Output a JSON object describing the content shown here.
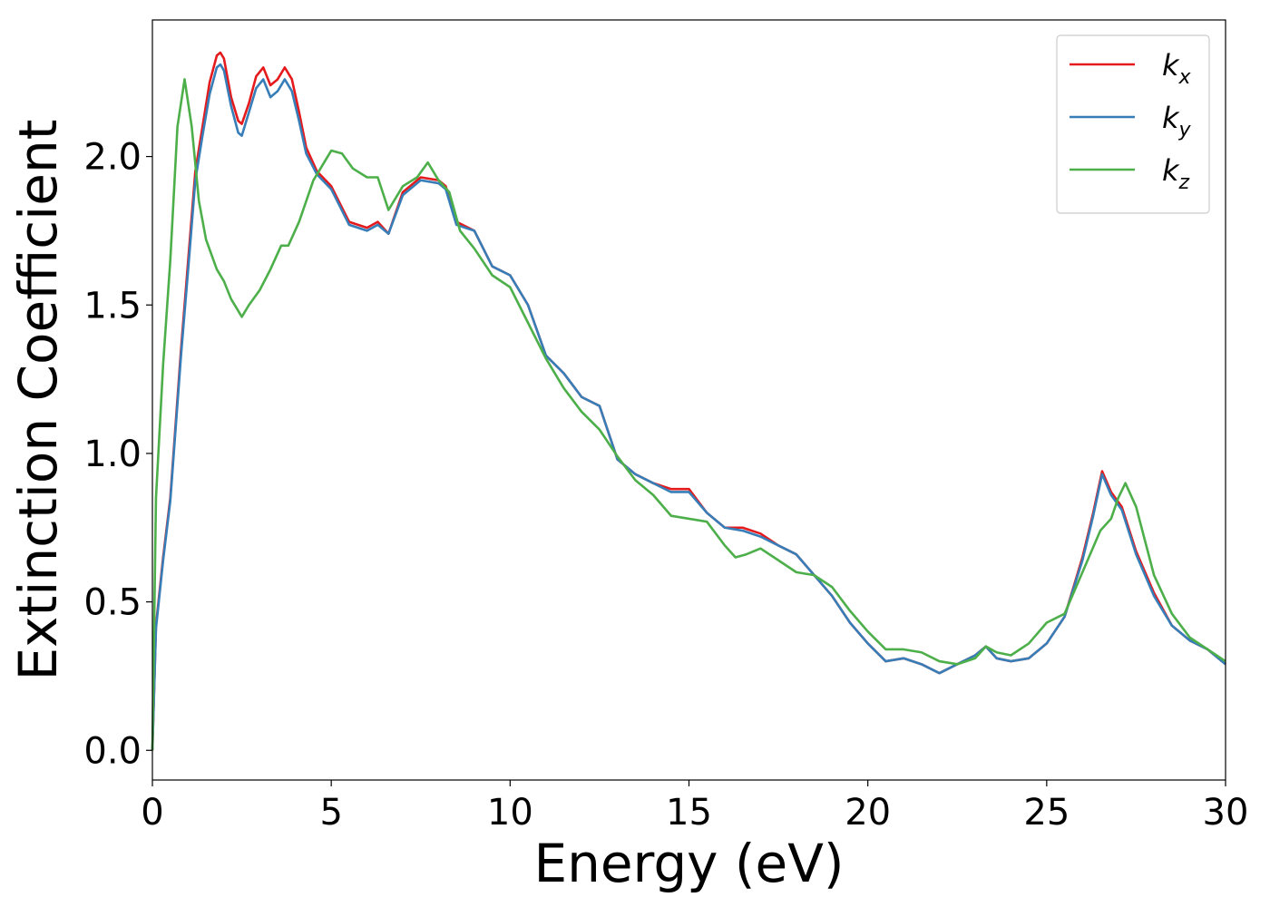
{
  "chart_data": {
    "type": "line",
    "xlabel": "Energy (eV)",
    "ylabel": "Extinction Coefficient",
    "xlim": [
      0,
      30
    ],
    "ylim": [
      -0.1,
      2.46
    ],
    "xticks": [
      0,
      5,
      10,
      15,
      20,
      25,
      30
    ],
    "yticks": [
      0.0,
      0.5,
      1.0,
      1.5,
      2.0
    ],
    "xtick_labels": [
      "0",
      "5",
      "10",
      "15",
      "20",
      "25",
      "30"
    ],
    "ytick_labels": [
      "0.0",
      "0.5",
      "1.0",
      "1.5",
      "2.0"
    ],
    "grid": false,
    "legend_position": "top-right",
    "series": [
      {
        "name": "k",
        "subscript": "x",
        "color": "#e41a1c",
        "x": [
          0,
          0.1,
          0.3,
          0.5,
          0.8,
          1.0,
          1.2,
          1.4,
          1.6,
          1.8,
          1.9,
          2.0,
          2.2,
          2.4,
          2.5,
          2.7,
          2.9,
          3.1,
          3.3,
          3.5,
          3.7,
          3.9,
          4.1,
          4.3,
          4.6,
          5.0,
          5.5,
          6.0,
          6.3,
          6.6,
          7.0,
          7.5,
          8.0,
          8.2,
          8.5,
          9.0,
          9.5,
          10.0,
          10.5,
          11.0,
          11.5,
          12.0,
          12.5,
          13.0,
          13.5,
          14.0,
          14.5,
          15.0,
          15.5,
          16.0,
          16.5,
          17.0,
          17.5,
          18.0,
          18.5,
          19.0,
          19.5,
          20.0,
          20.5,
          21.0,
          21.5,
          22.0,
          22.5,
          23.0,
          23.3,
          23.6,
          24.0,
          24.5,
          25.0,
          25.5,
          26.0,
          26.3,
          26.55,
          26.8,
          27.1,
          27.5,
          28.0,
          28.5,
          29.0,
          29.5,
          30.0
        ],
        "values": [
          0.0,
          0.42,
          0.65,
          0.85,
          1.35,
          1.65,
          1.95,
          2.1,
          2.25,
          2.34,
          2.35,
          2.33,
          2.2,
          2.12,
          2.11,
          2.18,
          2.27,
          2.3,
          2.24,
          2.26,
          2.3,
          2.26,
          2.15,
          2.03,
          1.95,
          1.9,
          1.78,
          1.76,
          1.78,
          1.74,
          1.88,
          1.93,
          1.92,
          1.9,
          1.78,
          1.75,
          1.63,
          1.6,
          1.5,
          1.33,
          1.27,
          1.19,
          1.16,
          0.98,
          0.93,
          0.9,
          0.88,
          0.88,
          0.8,
          0.75,
          0.75,
          0.73,
          0.69,
          0.66,
          0.59,
          0.52,
          0.43,
          0.36,
          0.3,
          0.31,
          0.29,
          0.26,
          0.29,
          0.32,
          0.35,
          0.31,
          0.3,
          0.31,
          0.36,
          0.45,
          0.65,
          0.8,
          0.94,
          0.87,
          0.82,
          0.67,
          0.53,
          0.42,
          0.37,
          0.34,
          0.29
        ]
      },
      {
        "name": "k",
        "subscript": "y",
        "color": "#377eb8",
        "x": [
          0,
          0.1,
          0.3,
          0.5,
          0.8,
          1.0,
          1.2,
          1.4,
          1.6,
          1.8,
          1.9,
          2.0,
          2.2,
          2.4,
          2.5,
          2.7,
          2.9,
          3.1,
          3.3,
          3.5,
          3.7,
          3.9,
          4.1,
          4.3,
          4.6,
          5.0,
          5.5,
          6.0,
          6.3,
          6.6,
          7.0,
          7.5,
          8.0,
          8.2,
          8.5,
          9.0,
          9.5,
          10.0,
          10.5,
          11.0,
          11.5,
          12.0,
          12.5,
          13.0,
          13.5,
          14.0,
          14.5,
          15.0,
          15.5,
          16.0,
          16.5,
          17.0,
          17.5,
          18.0,
          18.5,
          19.0,
          19.5,
          20.0,
          20.5,
          21.0,
          21.5,
          22.0,
          22.5,
          23.0,
          23.3,
          23.6,
          24.0,
          24.5,
          25.0,
          25.5,
          26.0,
          26.3,
          26.55,
          26.8,
          27.1,
          27.5,
          28.0,
          28.5,
          29.0,
          29.5,
          30.0
        ],
        "values": [
          0.0,
          0.41,
          0.64,
          0.84,
          1.33,
          1.62,
          1.92,
          2.07,
          2.21,
          2.3,
          2.31,
          2.29,
          2.17,
          2.08,
          2.07,
          2.15,
          2.23,
          2.26,
          2.2,
          2.22,
          2.26,
          2.22,
          2.12,
          2.01,
          1.94,
          1.89,
          1.77,
          1.75,
          1.77,
          1.74,
          1.87,
          1.92,
          1.91,
          1.89,
          1.77,
          1.75,
          1.63,
          1.6,
          1.5,
          1.33,
          1.27,
          1.19,
          1.16,
          0.98,
          0.93,
          0.9,
          0.87,
          0.87,
          0.8,
          0.75,
          0.74,
          0.72,
          0.69,
          0.66,
          0.59,
          0.52,
          0.43,
          0.36,
          0.3,
          0.31,
          0.29,
          0.26,
          0.29,
          0.32,
          0.35,
          0.31,
          0.3,
          0.31,
          0.36,
          0.45,
          0.64,
          0.79,
          0.93,
          0.86,
          0.81,
          0.66,
          0.52,
          0.42,
          0.37,
          0.34,
          0.29
        ]
      },
      {
        "name": "k",
        "subscript": "z",
        "color": "#4daf4a",
        "x": [
          0,
          0.1,
          0.3,
          0.5,
          0.7,
          0.9,
          1.1,
          1.3,
          1.5,
          1.8,
          2.0,
          2.2,
          2.5,
          2.7,
          3.0,
          3.3,
          3.6,
          3.8,
          4.1,
          4.5,
          5.0,
          5.3,
          5.6,
          6.0,
          6.3,
          6.6,
          7.0,
          7.4,
          7.7,
          8.0,
          8.3,
          8.6,
          9.0,
          9.5,
          10.0,
          10.5,
          11.0,
          11.5,
          12.0,
          12.5,
          13.0,
          13.5,
          14.0,
          14.5,
          15.0,
          15.5,
          16.0,
          16.3,
          16.6,
          17.0,
          17.5,
          18.0,
          18.5,
          19.0,
          19.5,
          20.0,
          20.5,
          21.0,
          21.5,
          22.0,
          22.5,
          23.0,
          23.3,
          23.6,
          24.0,
          24.5,
          25.0,
          25.5,
          26.0,
          26.5,
          26.8,
          27.0,
          27.2,
          27.5,
          28.0,
          28.5,
          29.0,
          29.5,
          30.0
        ],
        "values": [
          0.0,
          0.85,
          1.3,
          1.65,
          2.1,
          2.26,
          2.1,
          1.85,
          1.72,
          1.62,
          1.58,
          1.52,
          1.46,
          1.5,
          1.55,
          1.62,
          1.7,
          1.7,
          1.78,
          1.92,
          2.02,
          2.01,
          1.96,
          1.93,
          1.93,
          1.82,
          1.9,
          1.93,
          1.98,
          1.92,
          1.88,
          1.75,
          1.69,
          1.6,
          1.56,
          1.44,
          1.32,
          1.22,
          1.14,
          1.08,
          0.99,
          0.91,
          0.86,
          0.79,
          0.78,
          0.77,
          0.69,
          0.65,
          0.66,
          0.68,
          0.64,
          0.6,
          0.59,
          0.55,
          0.47,
          0.4,
          0.34,
          0.34,
          0.33,
          0.3,
          0.29,
          0.31,
          0.35,
          0.33,
          0.32,
          0.36,
          0.43,
          0.46,
          0.6,
          0.74,
          0.78,
          0.85,
          0.9,
          0.82,
          0.59,
          0.46,
          0.38,
          0.34,
          0.3
        ]
      }
    ]
  }
}
